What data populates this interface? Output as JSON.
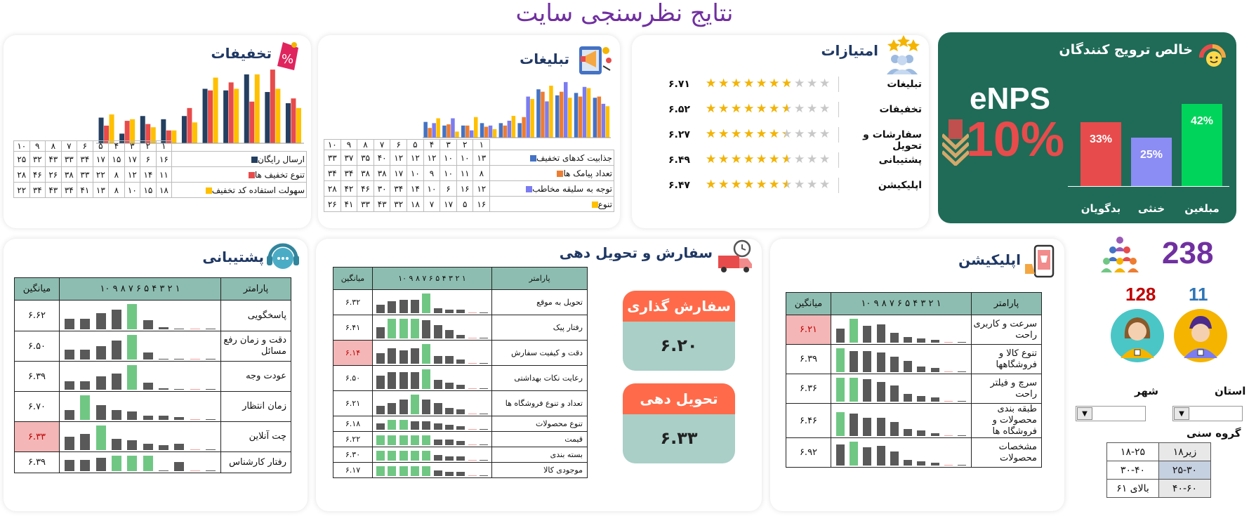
{
  "title": "نتایج نظرسنجی سایت",
  "colors": {
    "navy": "#243f60",
    "red": "#e84b4b",
    "yellow": "#ffc000",
    "purple": "#7b7cf0",
    "orange": "#ed7d31",
    "green": "#70c784"
  },
  "nps": {
    "title": "خالص ترویج کنندگان",
    "label": "eNPS",
    "value": "10%",
    "bars": [
      {
        "label": "مبلغین",
        "value": "42%",
        "pct": 42,
        "color": "#00d45a"
      },
      {
        "label": "خنثی",
        "value": "25%",
        "pct": 25,
        "color": "#8c8cf5"
      },
      {
        "label": "بدگویان",
        "value": "33%",
        "pct": 33,
        "color": "#e84b4b"
      }
    ]
  },
  "ratings": {
    "title": "امتیازات",
    "items": [
      {
        "label": "تبلیغات",
        "value": "۶.۷۱",
        "stars": 6.71
      },
      {
        "label": "تخفیفات",
        "value": "۶.۵۲",
        "stars": 6.52
      },
      {
        "label": "سفارشات و تحویل",
        "value": "۶.۲۷",
        "stars": 6.27
      },
      {
        "label": "پشتیبانی",
        "value": "۶.۴۹",
        "stars": 6.49
      },
      {
        "label": "اپلیکیشن",
        "value": "۶.۴۷",
        "stars": 6.47
      }
    ]
  },
  "ads": {
    "title": "تبلیغات",
    "cols": [
      "۱",
      "۲",
      "۳",
      "۴",
      "۵",
      "۶",
      "۷",
      "۸",
      "۹",
      "۱۰"
    ],
    "series": [
      {
        "name": "جذابیت کدهای تخفیف",
        "color": "#4472c4",
        "values": [
          13,
          10,
          10,
          12,
          12,
          12,
          40,
          35,
          37,
          33
        ],
        "labels": [
          "۱۳",
          "۱۰",
          "۱۰",
          "۱۲",
          "۱۲",
          "۱۲",
          "۴۰",
          "۳۵",
          "۳۷",
          "۳۳"
        ]
      },
      {
        "name": "تعداد پیامک ها",
        "color": "#ed7d31",
        "values": [
          8,
          11,
          10,
          9,
          10,
          17,
          38,
          38,
          34,
          34
        ],
        "labels": [
          "۸",
          "۱۱",
          "۱۰",
          "۹",
          "۱۰",
          "۱۷",
          "۳۸",
          "۳۸",
          "۳۴",
          "۳۴"
        ]
      },
      {
        "name": "توجه به سلیقه مخاطب",
        "color": "#7b7cf0",
        "values": [
          12,
          16,
          6,
          10,
          14,
          34,
          30,
          46,
          42,
          28
        ],
        "labels": [
          "۱۲",
          "۱۶",
          "۶",
          "۱۰",
          "۱۴",
          "۳۴",
          "۳۰",
          "۴۶",
          "۴۲",
          "۲۸"
        ]
      },
      {
        "name": "تنوع",
        "color": "#ffc000",
        "values": [
          16,
          5,
          17,
          7,
          18,
          32,
          43,
          33,
          41,
          26
        ],
        "labels": [
          "۱۶",
          "۵",
          "۱۷",
          "۷",
          "۱۸",
          "۳۲",
          "۴۳",
          "۳۳",
          "۴۱",
          "۲۶"
        ]
      }
    ]
  },
  "discounts": {
    "title": "تخفیفات",
    "cols": [
      "۱",
      "۲",
      "۳",
      "۴",
      "۵",
      "۶",
      "۷",
      "۸",
      "۹",
      "۱۰"
    ],
    "series": [
      {
        "name": "ارسال رایگان",
        "color": "#243f60",
        "values": [
          16,
          6,
          17,
          15,
          17,
          34,
          33,
          43,
          32,
          25
        ],
        "labels": [
          "۱۶",
          "۶",
          "۱۷",
          "۱۵",
          "۱۷",
          "۳۴",
          "۳۳",
          "۴۳",
          "۳۲",
          "۲۵"
        ]
      },
      {
        "name": "تنوع تخفیف ها",
        "color": "#e84b4b",
        "values": [
          11,
          14,
          12,
          8,
          22,
          33,
          38,
          26,
          46,
          28
        ],
        "labels": [
          "۱۱",
          "۱۴",
          "۱۲",
          "۸",
          "۲۲",
          "۳۳",
          "۳۸",
          "۲۶",
          "۴۶",
          "۲۸"
        ]
      },
      {
        "name": "سهولت استفاده کد تخفیف",
        "color": "#ffc000",
        "values": [
          18,
          15,
          10,
          8,
          13,
          41,
          34,
          43,
          34,
          22
        ],
        "labels": [
          "۱۸",
          "۱۵",
          "۱۰",
          "۸",
          "۱۳",
          "۴۱",
          "۳۴",
          "۴۳",
          "۳۴",
          "۲۲"
        ]
      }
    ]
  },
  "support": {
    "title": "پشتیبانی",
    "head": {
      "param": "پارامتر",
      "scale": "۱ ۲ ۳ ۴ ۵ ۶ ۷ ۸ ۹ ۱۰",
      "avg": "میانگین"
    },
    "rows": [
      {
        "label": "پاسخگویی",
        "avg": "۶.۶۲",
        "dist": [
          14,
          14,
          22,
          26,
          34,
          12,
          3,
          0,
          1,
          1
        ]
      },
      {
        "label": "دقت و زمان رفع مسائل",
        "avg": "۶.۵۰",
        "dist": [
          14,
          14,
          18,
          26,
          34,
          10,
          0,
          1,
          2,
          0
        ]
      },
      {
        "label": "عودت وجه",
        "avg": "۶.۳۹",
        "dist": [
          12,
          12,
          18,
          22,
          34,
          10,
          2,
          1,
          2,
          0
        ]
      },
      {
        "label": "زمان انتظار",
        "avg": "۶.۷۰",
        "dist": [
          14,
          34,
          20,
          14,
          12,
          6,
          6,
          4,
          6,
          0
        ]
      },
      {
        "label": "چت آنلاین",
        "avg": "۶.۳۳",
        "dist": [
          16,
          20,
          30,
          14,
          12,
          8,
          6,
          8,
          8,
          0
        ],
        "hl": true
      },
      {
        "label": "رفتار کارشناس",
        "avg": "۶.۳۹",
        "dist": [
          10,
          10,
          12,
          14,
          14,
          14,
          0,
          8,
          8,
          0
        ]
      }
    ]
  },
  "orders": {
    "title": "سفارش و تحویل دهی",
    "head": {
      "param": "پارامتر",
      "scale": "۱ ۲ ۳ ۴ ۵ ۶ ۷ ۸ ۹ ۱۰",
      "avg": "میانگین"
    },
    "rows": [
      {
        "label": "تحویل به موقع",
        "avg": "۶.۳۲",
        "dist": [
          14,
          20,
          22,
          22,
          32,
          8,
          6,
          6,
          1,
          0
        ]
      },
      {
        "label": "رفتار پیک",
        "avg": "۶.۴۱",
        "dist": [
          14,
          24,
          24,
          24,
          22,
          16,
          10,
          4,
          1,
          0
        ]
      },
      {
        "label": "دقت و کیفیت سفارش",
        "avg": "۶.۱۴",
        "dist": [
          14,
          20,
          18,
          20,
          26,
          10,
          10,
          6,
          1,
          0
        ],
        "hl": true
      },
      {
        "label": "رعایت نکات بهداشتی",
        "avg": "۶.۵۰",
        "dist": [
          18,
          22,
          22,
          22,
          26,
          12,
          8,
          6,
          1,
          0
        ]
      },
      {
        "label": "تعداد و تنوع فروشگاه ها",
        "avg": "۶.۲۱",
        "dist": [
          10,
          14,
          18,
          24,
          18,
          14,
          8,
          6,
          1,
          0
        ]
      },
      {
        "label": "تنوع محصولات",
        "avg": "۶.۱۸",
        "dist": [
          8,
          12,
          12,
          10,
          10,
          8,
          6,
          4,
          1,
          0
        ]
      },
      {
        "label": "قیمت",
        "avg": "۶.۲۲",
        "dist": [
          10,
          10,
          10,
          10,
          10,
          6,
          6,
          4,
          1,
          0
        ]
      },
      {
        "label": "بسته بندی",
        "avg": "۶.۳۰",
        "dist": [
          10,
          10,
          10,
          10,
          10,
          6,
          4,
          4,
          1,
          0
        ]
      },
      {
        "label": "موجودی کالا",
        "avg": "۶.۱۷",
        "dist": [
          10,
          10,
          10,
          10,
          10,
          6,
          4,
          4,
          1,
          0
        ]
      }
    ],
    "pills": [
      {
        "label": "سفارش گذاری",
        "value": "۶.۲۰"
      },
      {
        "label": "تحویل دهی",
        "value": "۶.۳۳"
      }
    ]
  },
  "app": {
    "title": "اپلیکیشن",
    "head": {
      "param": "پارامتر",
      "scale": "۱ ۲ ۳ ۴ ۵ ۶ ۷ ۸ ۹ ۱۰",
      "avg": "میانگین"
    },
    "rows": [
      {
        "label": "سرعت و کاربری راحت",
        "avg": "۶.۲۱",
        "dist": [
          20,
          34,
          24,
          26,
          14,
          8,
          6,
          4,
          1,
          0
        ],
        "hl": true
      },
      {
        "label": "تنوع کالا و فروشگاهها",
        "avg": "۶.۳۹",
        "dist": [
          34,
          30,
          30,
          28,
          22,
          16,
          8,
          6,
          1,
          0
        ]
      },
      {
        "label": "سرچ و فیلتر راحت",
        "avg": "۶.۳۶",
        "dist": [
          32,
          32,
          30,
          26,
          22,
          10,
          8,
          6,
          1,
          0
        ]
      },
      {
        "label": "طبقه بندی محصولات و فروشگاه ها",
        "avg": "۶.۴۶",
        "dist": [
          34,
          32,
          26,
          26,
          20,
          10,
          8,
          4,
          1,
          0
        ]
      },
      {
        "label": "مشخصات محصولات",
        "avg": "۶.۹۲",
        "dist": [
          30,
          34,
          26,
          28,
          20,
          8,
          6,
          4,
          1,
          0
        ]
      }
    ]
  },
  "people": {
    "total": "238",
    "male": "11",
    "female": "128",
    "province_label": "استان",
    "city_label": "شهر",
    "age_label": "گروه سنی",
    "ages": [
      [
        "زیر۱۸",
        "۱۸-۲۵"
      ],
      [
        "۲۵-۳۰",
        "۳۰-۴۰"
      ],
      [
        "۴۰-۶۰",
        "بالای ۶۱"
      ]
    ]
  }
}
